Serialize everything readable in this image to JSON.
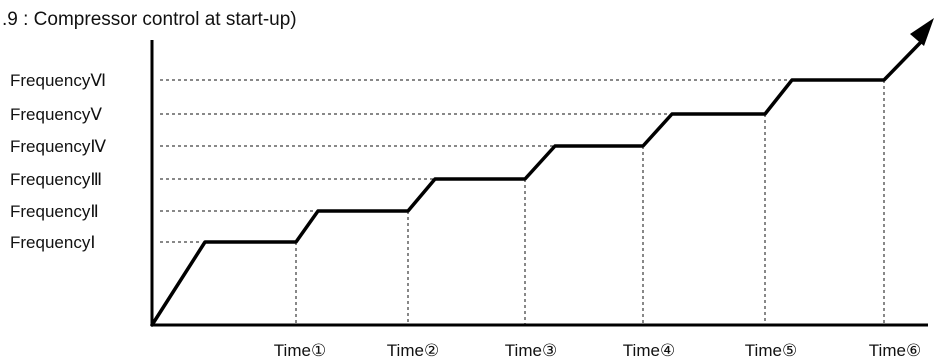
{
  "title": ".9 : Compressor control at start-up)",
  "levels": [
    "FrequencyⅠ",
    "FrequencyⅡ",
    "FrequencyⅢ",
    "FrequencyⅣ",
    "FrequencyⅤ",
    "FrequencyⅥ"
  ],
  "times": [
    "Time①",
    "Time②",
    "Time③",
    "Time④",
    "Time⑤",
    "Time⑥"
  ],
  "style": {
    "line_color": "#000000",
    "background": "#ffffff"
  }
}
